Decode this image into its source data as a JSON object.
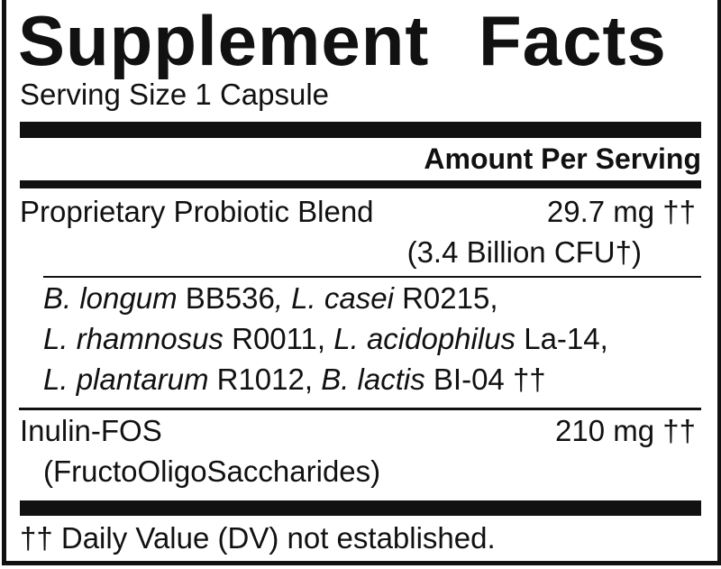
{
  "title": "Supplement Facts",
  "serving_size": "Serving Size 1 Capsule",
  "amount_header": "Amount Per Serving",
  "items": [
    {
      "name": "Proprietary Probiotic Blend",
      "amount": "29.7 mg ††",
      "sub": "(3.4 Billion CFU†)"
    },
    {
      "name": "Inulin-FOS",
      "amount": "210 mg ††",
      "sub": "(FructoOligoSaccharides)"
    }
  ],
  "strains": [
    [
      {
        "s": "B. longum",
        "i": true
      },
      {
        "s": " BB536",
        "i": false
      },
      {
        "s": ", L. casei",
        "i": true
      },
      {
        "s": " R0215,",
        "i": false
      }
    ],
    [
      {
        "s": "L. rhamnosus",
        "i": true
      },
      {
        "s": " R0011, ",
        "i": false
      },
      {
        "s": "L. acidophilus",
        "i": true
      },
      {
        "s": " La-14,",
        "i": false
      }
    ],
    [
      {
        "s": "L. plantarum",
        "i": true
      },
      {
        "s": " R1012, ",
        "i": false
      },
      {
        "s": "B. lactis",
        "i": true
      },
      {
        "s": " BI-04 ††",
        "i": false
      }
    ]
  ],
  "footnote": "†† Daily Value (DV) not established."
}
